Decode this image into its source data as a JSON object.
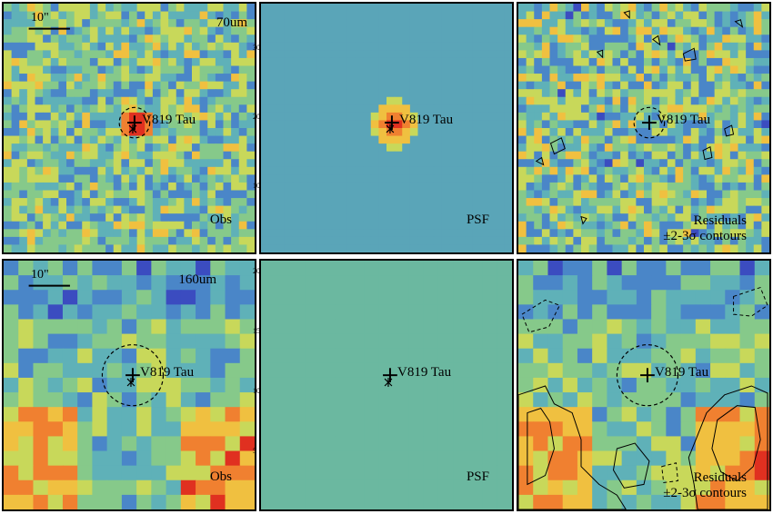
{
  "source_name": "V819 Tau",
  "scale_bar_label": "10\"",
  "rows": [
    {
      "band": "70um",
      "panels": [
        {
          "kind": "obs",
          "corner_label": "Obs"
        },
        {
          "kind": "psf",
          "corner_label": "PSF"
        },
        {
          "kind": "res",
          "corner_label_1": "Residuals",
          "corner_label_2": "±2-3σ contours"
        }
      ]
    },
    {
      "band": "160um",
      "panels": [
        {
          "kind": "obs",
          "corner_label": "Obs"
        },
        {
          "kind": "psf",
          "corner_label": "PSF"
        },
        {
          "kind": "res",
          "corner_label_1": "Residuals",
          "corner_label_2": "±2-3σ contours"
        }
      ]
    }
  ],
  "tick_labels_top_psf": [
    "30",
    "20",
    "10"
  ],
  "tick_labels_bottom_psf": [
    "20",
    "15",
    "10",
    "5"
  ],
  "colors": {
    "colormap": [
      "#5a1e8c",
      "#3b4cc0",
      "#4a86c8",
      "#5fb1b8",
      "#86c98a",
      "#c8d85a",
      "#f0c040",
      "#f08030",
      "#e03020"
    ],
    "psf_bg_top": "#5aa5b8",
    "psf_bg_bottom": "#6bb8a0"
  }
}
